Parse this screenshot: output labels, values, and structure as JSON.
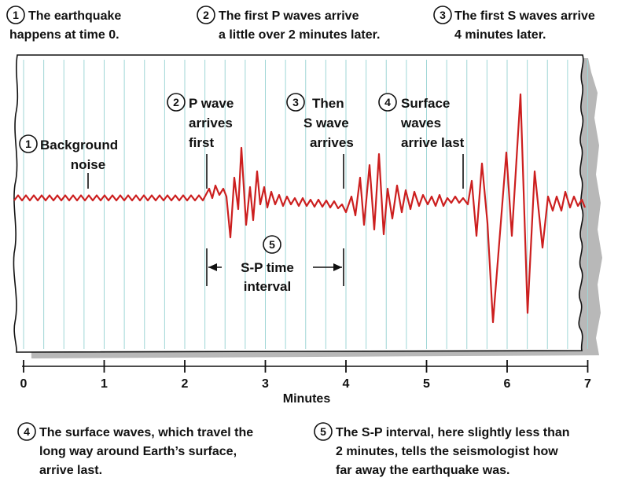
{
  "top_notes": [
    {
      "num": "1",
      "line1": "The earthquake",
      "line2": "happens at time 0."
    },
    {
      "num": "2",
      "line1": "The first P waves arrive",
      "line2": "a little over 2 minutes later."
    },
    {
      "num": "3",
      "line1": "The first S waves arrive",
      "line2": "4 minutes later."
    }
  ],
  "chart_labels": {
    "background": {
      "num": "1",
      "line1": "Background",
      "line2": "noise"
    },
    "p_wave": {
      "num": "2",
      "line1": "P wave",
      "line2": "arrives",
      "line3": "first"
    },
    "s_wave": {
      "num": "3",
      "line1": "Then",
      "line2": "S wave",
      "line3": "arrives"
    },
    "surface": {
      "num": "4",
      "line1": "Surface",
      "line2": "waves",
      "line3": "arrive last"
    },
    "sp_interval": {
      "num": "5",
      "line1": "S-P time",
      "line2": "interval"
    }
  },
  "bottom_notes": [
    {
      "num": "4",
      "line1": "The surface waves, which travel the",
      "line2": "long way around Earth’s surface,",
      "line3": "arrive last."
    },
    {
      "num": "5",
      "line1": "The S-P interval, here slightly less than",
      "line2": "2 minutes, tells the seismologist how",
      "line3": "far away the earthquake was."
    }
  ],
  "axis": {
    "xlabel": "Minutes",
    "ticks": [
      "0",
      "1",
      "2",
      "3",
      "4",
      "5",
      "6",
      "7"
    ],
    "xlim": [
      0,
      7
    ]
  },
  "colors": {
    "trace": "#cc1f1f",
    "grid": "#9fd6d6",
    "paper_edge": "#111111",
    "shadow": "#b8b8b8"
  },
  "events": {
    "p_arrival_min": 2.3,
    "s_arrival_min": 4.0,
    "surface_arrival_min": 5.5
  }
}
